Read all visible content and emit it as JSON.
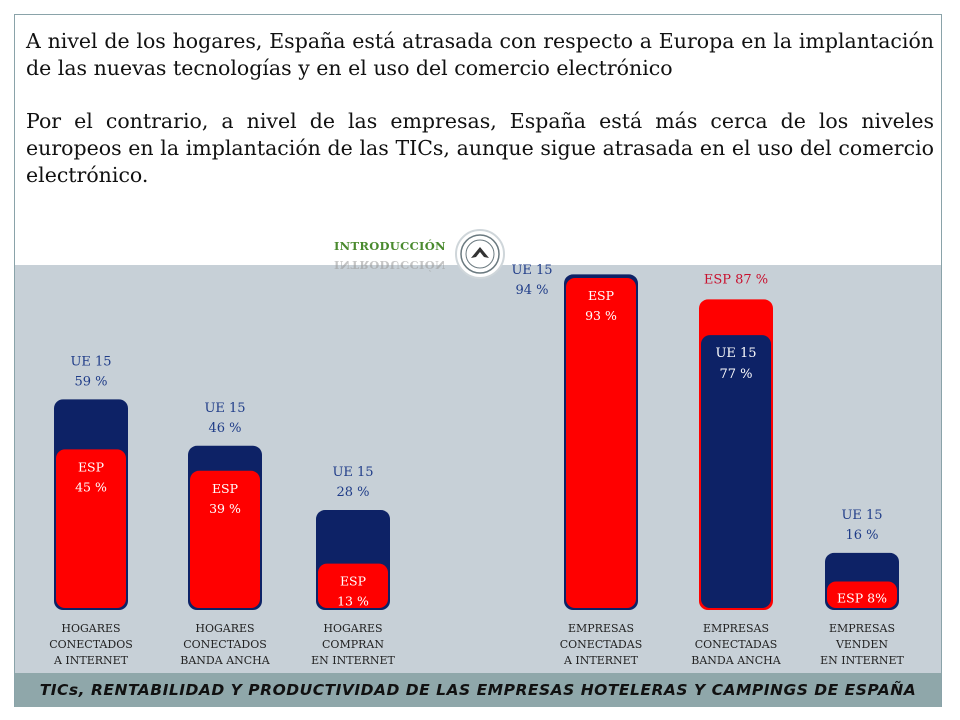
{
  "paragraphs": [
    "A nivel de los hogares, España está atrasada con respecto a Europa en la implantación de las nuevas tecnologías y en el uso del comercio electrónico",
    "Por el contrario, a nivel de las empresas, España está más cerca de los niveles europeos en la implantación de las TICs, aunque sigue atrasada en el uso del comercio electrónico."
  ],
  "section_label": "INTRODUCCIÓN",
  "footer_title": "TICs, RENTABILIDAD Y PRODUCTIVIDAD DE LAS EMPRESAS HOTELERAS Y CAMPINGS DE ESPAÑA",
  "colors": {
    "ue": "#0d2266",
    "esp": "#ff0000",
    "background": "#c7d0d7",
    "footer": "#8fa7aa"
  },
  "chart_data": {
    "type": "bar",
    "series": [
      {
        "name": "UE 15",
        "values": [
          59,
          46,
          28,
          94,
          77,
          16
        ]
      },
      {
        "name": "ESP",
        "values": [
          45,
          39,
          13,
          93,
          87,
          8
        ]
      }
    ],
    "categories": [
      [
        "HOGARES",
        "CONECTADOS",
        "A INTERNET"
      ],
      [
        "HOGARES",
        "CONECTADOS",
        "BANDA ANCHA"
      ],
      [
        "HOGARES",
        "COMPRAN",
        "EN INTERNET"
      ],
      [
        "EMPRESAS",
        "CONECTADAS",
        "A INTERNET"
      ],
      [
        "EMPRESAS",
        "CONECTADAS",
        "BANDA ANCHA"
      ],
      [
        "EMPRESAS",
        "VENDEN",
        "EN INTERNET"
      ]
    ],
    "labels": [
      {
        "ue": [
          "UE 15",
          "59 %"
        ],
        "esp": [
          "ESP",
          "45 %"
        ]
      },
      {
        "ue": [
          "UE 15",
          "46 %"
        ],
        "esp": [
          "ESP",
          "39 %"
        ]
      },
      {
        "ue": [
          "UE 15",
          "28 %"
        ],
        "esp": [
          "ESP",
          "13 %"
        ]
      },
      {
        "ue": [
          "UE 15",
          "94 %"
        ],
        "esp": [
          "ESP",
          "93 %"
        ]
      },
      {
        "ue": [
          "UE 15",
          "77 %"
        ],
        "esp": [
          "ESP 87 %"
        ]
      },
      {
        "ue": [
          "UE 15",
          "16 %"
        ],
        "esp": [
          "ESP 8%"
        ]
      }
    ]
  }
}
